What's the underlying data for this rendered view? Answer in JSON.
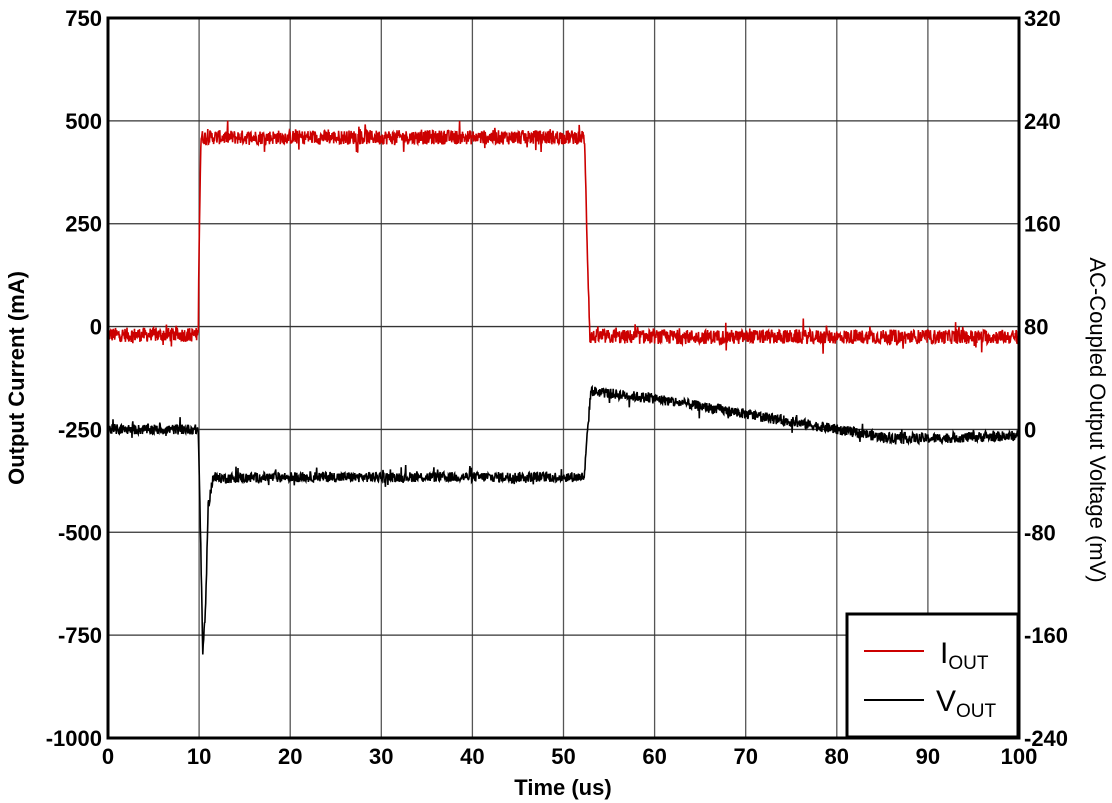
{
  "chart_data": {
    "type": "line",
    "title": "",
    "xlabel": "Time (us)",
    "ylabel": "Output Current (mA)",
    "y2label": "AC-Coupled Output Voltage (mV)",
    "xlim": [
      0,
      100
    ],
    "ylim": [
      -1000,
      750
    ],
    "y2lim": [
      -240,
      320
    ],
    "grid": true,
    "legend_position": "lower right",
    "x_ticks": [
      "0",
      "10",
      "20",
      "30",
      "40",
      "50",
      "60",
      "70",
      "80",
      "90",
      "100"
    ],
    "y_ticks": [
      "750",
      "500",
      "250",
      "0",
      "-250",
      "-500",
      "-750",
      "-1000"
    ],
    "y2_ticks": [
      "320",
      "240",
      "160",
      "80",
      "0",
      "-80",
      "-160",
      "-240"
    ],
    "series": [
      {
        "name": "IOUT",
        "label_main": "I",
        "label_sub": "OUT",
        "axis": "left",
        "color": "#cc0000",
        "x": [
          0,
          9.9,
          10.0,
          10.2,
          52.3,
          52.6,
          52.9,
          100
        ],
        "y": [
          -20,
          -20,
          200,
          460,
          460,
          200,
          -25,
          -25
        ],
        "noise_band": 35
      },
      {
        "name": "VOUT",
        "label_main": "V",
        "label_sub": "OUT",
        "axis": "right",
        "color": "#000000",
        "x": [
          0,
          9.9,
          10.1,
          10.4,
          10.7,
          11.0,
          11.5,
          20,
          30,
          40,
          52.3,
          52.6,
          53.0,
          55,
          60,
          65,
          70,
          75,
          80,
          85,
          90,
          95,
          100
        ],
        "y": [
          0,
          0,
          -60,
          -175,
          -140,
          -60,
          -38,
          -37,
          -37,
          -37,
          -37,
          -5,
          30,
          28,
          24,
          18,
          12,
          6,
          0,
          -6,
          -7,
          -6,
          -5
        ],
        "noise_band": 8
      }
    ]
  }
}
